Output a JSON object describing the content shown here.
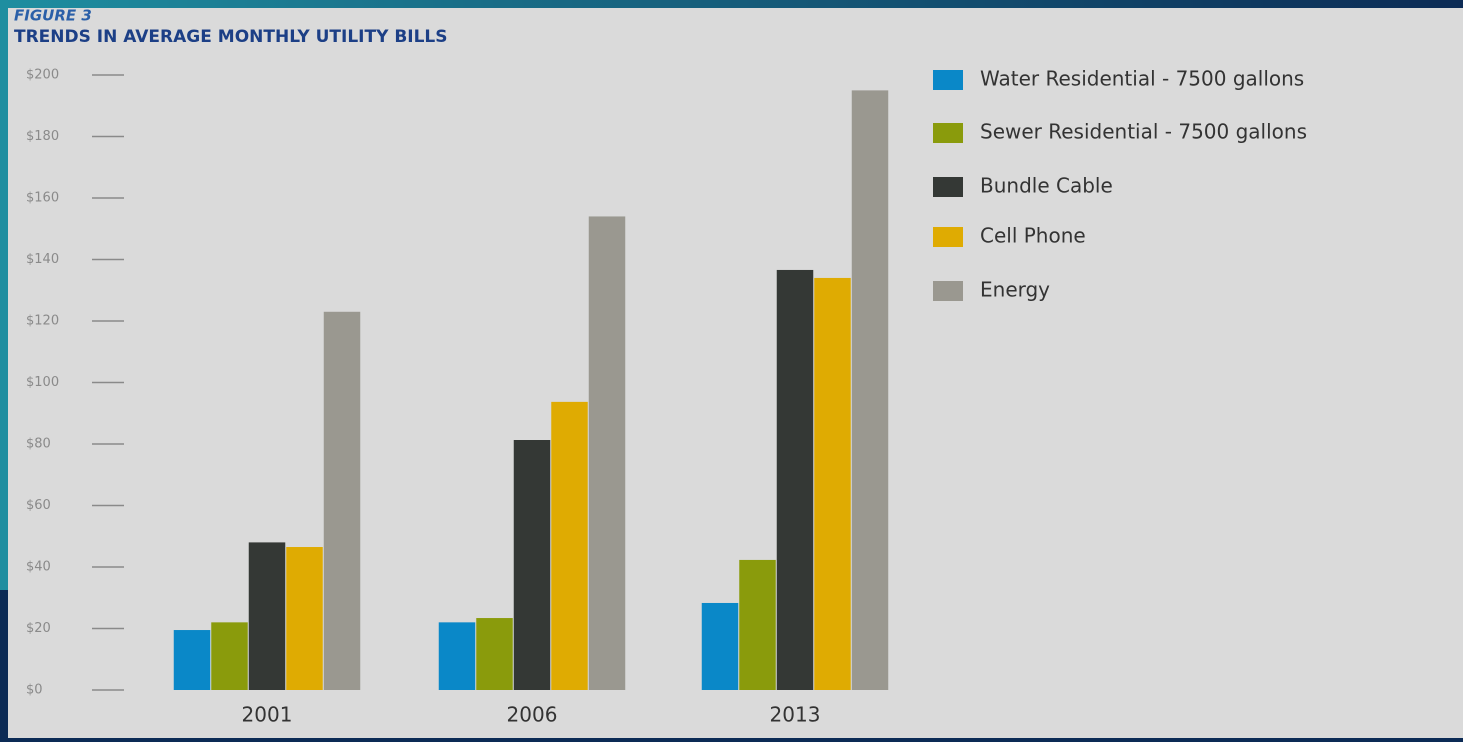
{
  "chart_data": {
    "type": "bar",
    "label": "FIGURE 3",
    "title": "TRENDS IN AVERAGE MONTHLY UTILITY BILLS",
    "categories": [
      "2001",
      "2006",
      "2013"
    ],
    "series": [
      {
        "name": "Water Residential - 7500 gallons",
        "color": "#0a88c8",
        "values": [
          19.5,
          22,
          28.3
        ]
      },
      {
        "name": "Sewer Residential - 7500 gallons",
        "color": "#8a9b0c",
        "values": [
          22,
          23.4,
          42.3
        ]
      },
      {
        "name": "Bundle Cable",
        "color": "#343835",
        "values": [
          48,
          81.3,
          136.6
        ]
      },
      {
        "name": "Cell Phone",
        "color": "#dfab02",
        "values": [
          46.5,
          93.7,
          134
        ]
      },
      {
        "name": "Energy",
        "color": "#9a9890",
        "values": [
          123,
          154,
          195
        ]
      }
    ],
    "ylim": [
      0,
      200
    ],
    "yticks": [
      {
        "value": 0,
        "label": "$0"
      },
      {
        "value": 20,
        "label": "$20"
      },
      {
        "value": 40,
        "label": "$40"
      },
      {
        "value": 60,
        "label": "$60"
      },
      {
        "value": 80,
        "label": "$80"
      },
      {
        "value": 100,
        "label": "$100"
      },
      {
        "value": 120,
        "label": "$120"
      },
      {
        "value": 140,
        "label": "$140"
      },
      {
        "value": 160,
        "label": "$160"
      },
      {
        "value": 180,
        "label": "$180"
      },
      {
        "value": 200,
        "label": "$200"
      }
    ],
    "legend": "right"
  }
}
